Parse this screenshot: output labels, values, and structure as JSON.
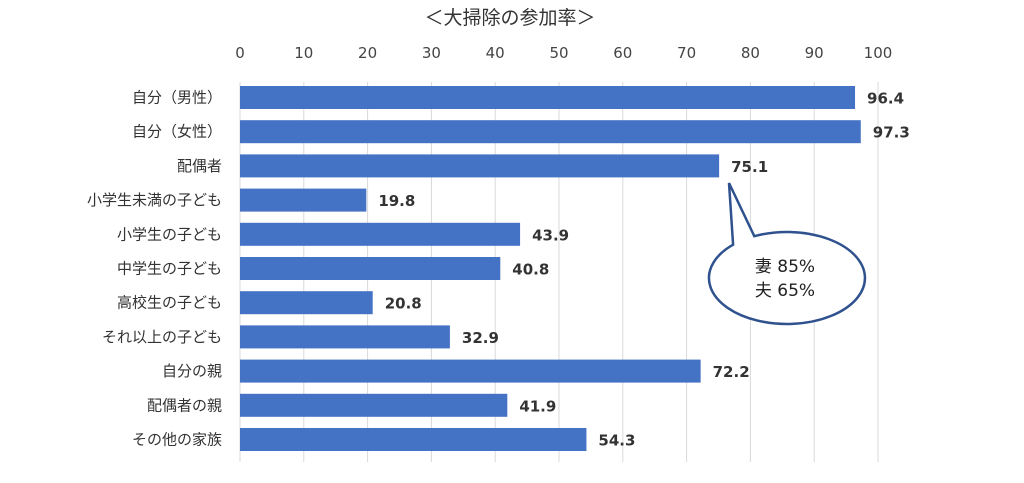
{
  "chart_data": {
    "type": "bar",
    "orientation": "horizontal",
    "title": "＜大掃除の参加率＞",
    "xlabel": "",
    "ylabel": "",
    "xlim": [
      0,
      100
    ],
    "ticks": [
      0,
      10,
      20,
      30,
      40,
      50,
      60,
      70,
      80,
      90,
      100
    ],
    "grid": true,
    "categories": [
      "自分（男性）",
      "自分（女性）",
      "配偶者",
      "小学生未満の子ども",
      "小学生の子ども",
      "中学生の子ども",
      "高校生の子ども",
      "それ以上の子ども",
      "自分の親",
      "配偶者の親",
      "その他の家族"
    ],
    "values": [
      96.4,
      97.3,
      75.1,
      19.8,
      43.9,
      40.8,
      20.8,
      32.9,
      72.2,
      41.9,
      54.3
    ],
    "value_labels": [
      "96.4",
      "97.3",
      "75.1",
      "19.8",
      "43.9",
      "40.8",
      "20.8",
      "32.9",
      "72.2",
      "41.9",
      "54.3"
    ],
    "bar_color": "#4472C4",
    "callout": {
      "target": "配偶者",
      "lines": [
        "妻 85%",
        "夫 65%"
      ],
      "border_color": "#2F528F"
    }
  }
}
